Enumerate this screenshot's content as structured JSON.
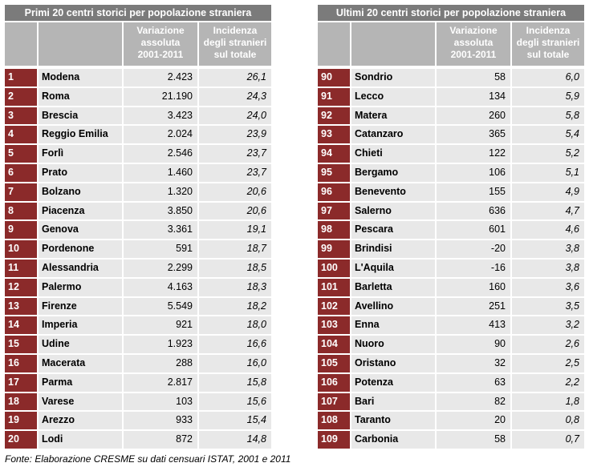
{
  "left": {
    "title": "Primi 20 centri storici per  popolazione straniera",
    "col_var": [
      "Variazione",
      "assoluta",
      "2001-2011"
    ],
    "col_inc": [
      "Incidenza",
      "degli stranieri",
      "sul totale"
    ],
    "rows": [
      {
        "rank": "1",
        "name": "Modena",
        "var": "2.423",
        "inc": "26,1"
      },
      {
        "rank": "2",
        "name": "Roma",
        "var": "21.190",
        "inc": "24,3"
      },
      {
        "rank": "3",
        "name": "Brescia",
        "var": "3.423",
        "inc": "24,0"
      },
      {
        "rank": "4",
        "name": "Reggio Emilia",
        "var": "2.024",
        "inc": "23,9"
      },
      {
        "rank": "5",
        "name": "Forlì",
        "var": "2.546",
        "inc": "23,7"
      },
      {
        "rank": "6",
        "name": "Prato",
        "var": "1.460",
        "inc": "23,7"
      },
      {
        "rank": "7",
        "name": "Bolzano",
        "var": "1.320",
        "inc": "20,6"
      },
      {
        "rank": "8",
        "name": "Piacenza",
        "var": "3.850",
        "inc": "20,6"
      },
      {
        "rank": "9",
        "name": "Genova",
        "var": "3.361",
        "inc": "19,1"
      },
      {
        "rank": "10",
        "name": "Pordenone",
        "var": "591",
        "inc": "18,7"
      },
      {
        "rank": "11",
        "name": "Alessandria",
        "var": "2.299",
        "inc": "18,5"
      },
      {
        "rank": "12",
        "name": "Palermo",
        "var": "4.163",
        "inc": "18,3"
      },
      {
        "rank": "13",
        "name": "Firenze",
        "var": "5.549",
        "inc": "18,2"
      },
      {
        "rank": "14",
        "name": "Imperia",
        "var": "921",
        "inc": "18,0"
      },
      {
        "rank": "15",
        "name": "Udine",
        "var": "1.923",
        "inc": "16,6"
      },
      {
        "rank": "16",
        "name": "Macerata",
        "var": "288",
        "inc": "16,0"
      },
      {
        "rank": "17",
        "name": "Parma",
        "var": "2.817",
        "inc": "15,8"
      },
      {
        "rank": "18",
        "name": "Varese",
        "var": "103",
        "inc": "15,6"
      },
      {
        "rank": "19",
        "name": "Arezzo",
        "var": "933",
        "inc": "15,4"
      },
      {
        "rank": "20",
        "name": "Lodi",
        "var": "872",
        "inc": "14,8"
      }
    ]
  },
  "right": {
    "title": "Ultimi 20 centri storici per popolazione straniera",
    "col_var": [
      "Variazione",
      "assoluta",
      "2001-2011"
    ],
    "col_inc": [
      "Incidenza",
      "degli stranieri",
      "sul totale"
    ],
    "rows": [
      {
        "rank": "90",
        "name": "Sondrio",
        "var": "58",
        "inc": "6,0"
      },
      {
        "rank": "91",
        "name": "Lecco",
        "var": "134",
        "inc": "5,9"
      },
      {
        "rank": "92",
        "name": "Matera",
        "var": "260",
        "inc": "5,8"
      },
      {
        "rank": "93",
        "name": "Catanzaro",
        "var": "365",
        "inc": "5,4"
      },
      {
        "rank": "94",
        "name": "Chieti",
        "var": "122",
        "inc": "5,2"
      },
      {
        "rank": "95",
        "name": "Bergamo",
        "var": "106",
        "inc": "5,1"
      },
      {
        "rank": "96",
        "name": "Benevento",
        "var": "155",
        "inc": "4,9"
      },
      {
        "rank": "97",
        "name": "Salerno",
        "var": "636",
        "inc": "4,7"
      },
      {
        "rank": "98",
        "name": "Pescara",
        "var": "601",
        "inc": "4,6"
      },
      {
        "rank": "99",
        "name": "Brindisi",
        "var": "-20",
        "inc": "3,8"
      },
      {
        "rank": "100",
        "name": "L'Aquila",
        "var": "-16",
        "inc": "3,8"
      },
      {
        "rank": "101",
        "name": "Barletta",
        "var": "160",
        "inc": "3,6"
      },
      {
        "rank": "102",
        "name": "Avellino",
        "var": "251",
        "inc": "3,5"
      },
      {
        "rank": "103",
        "name": "Enna",
        "var": "413",
        "inc": "3,2"
      },
      {
        "rank": "104",
        "name": "Nuoro",
        "var": "90",
        "inc": "2,6"
      },
      {
        "rank": "105",
        "name": "Oristano",
        "var": "32",
        "inc": "2,5"
      },
      {
        "rank": "106",
        "name": "Potenza",
        "var": "63",
        "inc": "2,2"
      },
      {
        "rank": "107",
        "name": "Bari",
        "var": "82",
        "inc": "1,8"
      },
      {
        "rank": "108",
        "name": "Taranto",
        "var": "20",
        "inc": "0,8"
      },
      {
        "rank": "109",
        "name": "Carbonia",
        "var": "58",
        "inc": "0,7"
      }
    ]
  },
  "source": "Fonte: Elaborazione  CRESME su dati censuari ISTAT, 2001 e 2011"
}
